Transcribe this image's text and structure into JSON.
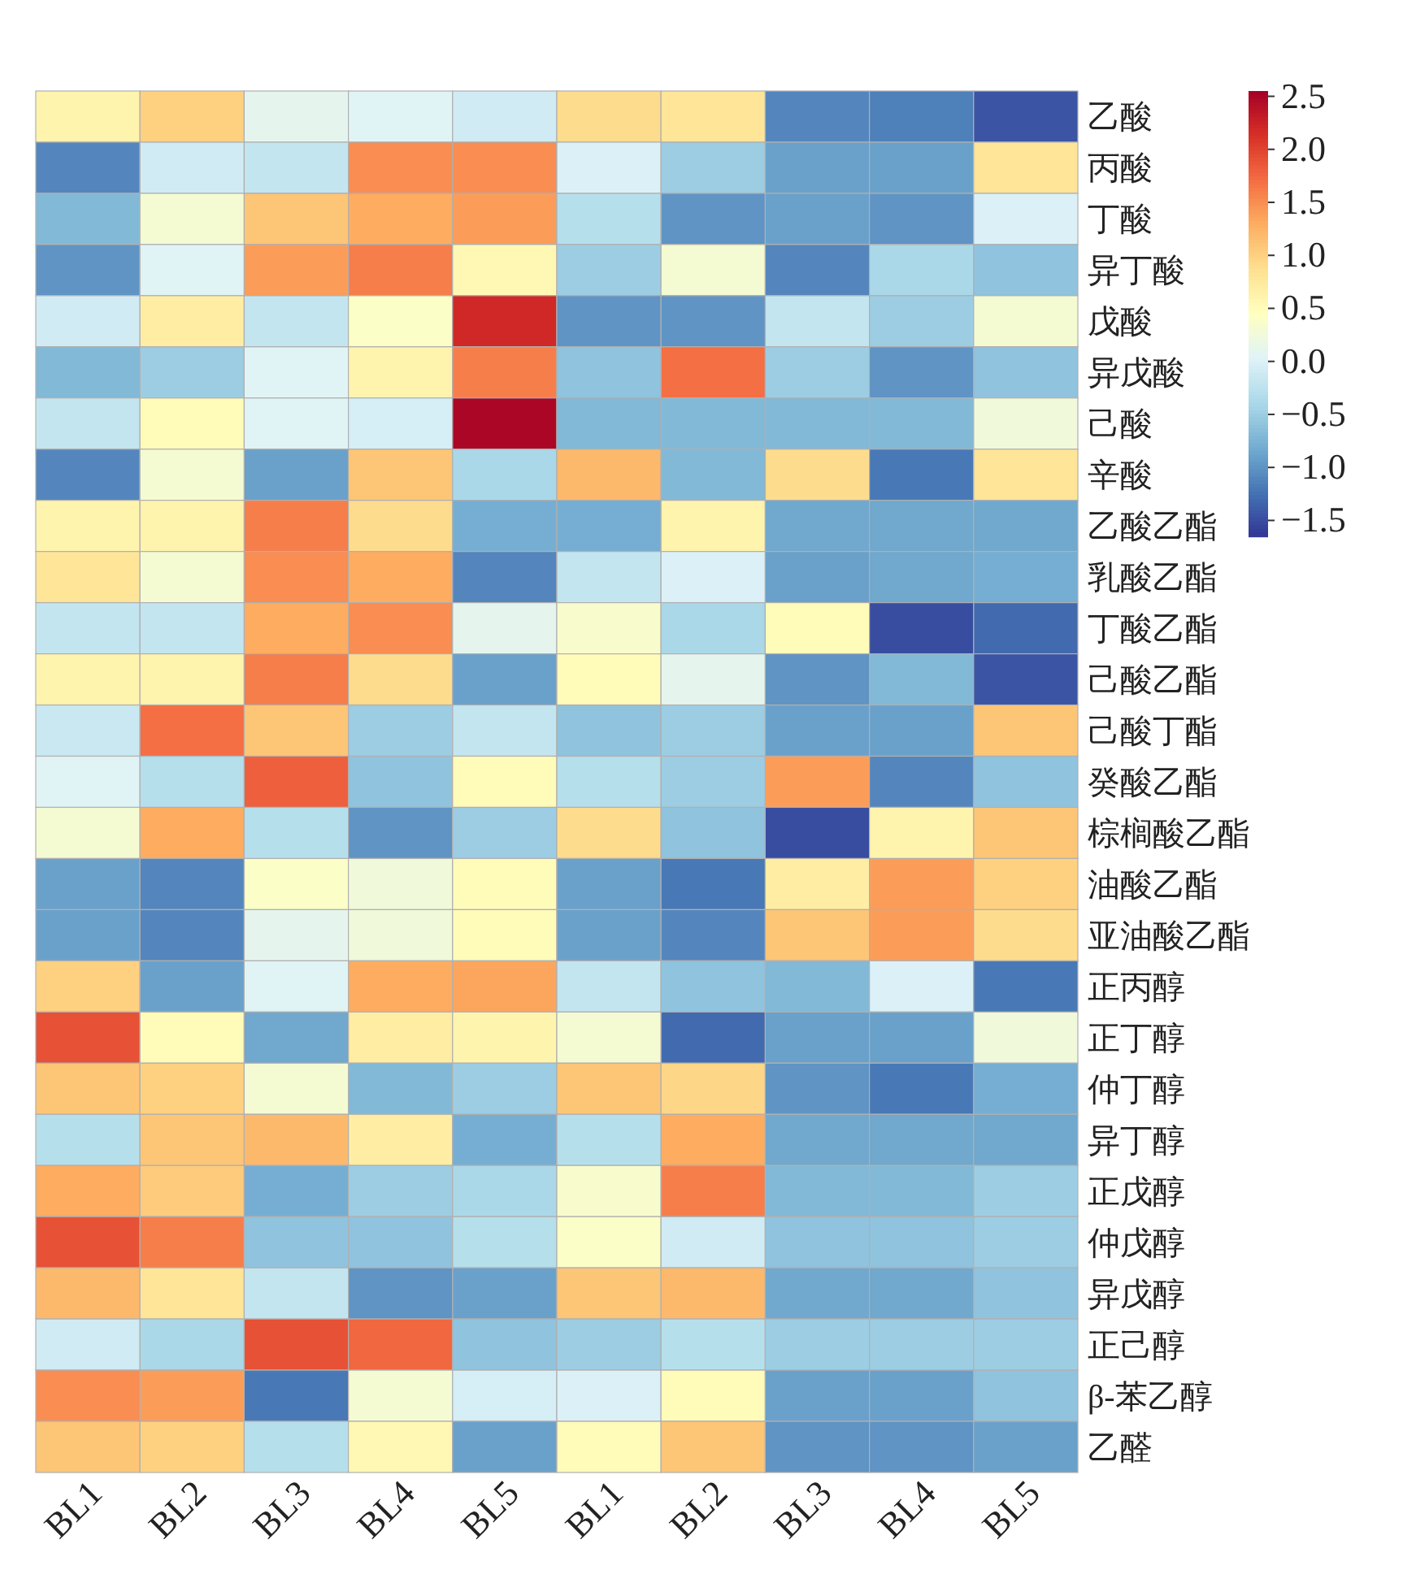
{
  "chart_data": {
    "type": "heatmap",
    "categories": [
      "BL1",
      "BL2",
      "BL3",
      "BL4",
      "BL5",
      "BL1",
      "BL2",
      "BL3",
      "BL4",
      "BL5"
    ],
    "y_categories": [
      "乙酸",
      "丙酸",
      "丁酸",
      "异丁酸",
      "戊酸",
      "异戊酸",
      "己酸",
      "辛酸",
      "乙酸乙酯",
      "乳酸乙酯",
      "丁酸乙酯",
      "己酸乙酯",
      "己酸丁酯",
      "癸酸乙酯",
      "棕榈酸乙酯",
      "油酸乙酯",
      "亚油酸乙酯",
      "正丙醇",
      "正丁醇",
      "仲丁醇",
      "异丁醇",
      "正戊醇",
      "仲戊醇",
      "异戊醇",
      "正己醇",
      "β-苯乙醇",
      "乙醛"
    ],
    "cells": [
      [
        0.6,
        1.0,
        0.1,
        0.05,
        -0.1,
        0.9,
        0.8,
        -1.1,
        -1.15,
        -1.45
      ],
      [
        -1.1,
        -0.1,
        -0.2,
        1.5,
        1.5,
        0.0,
        -0.5,
        -0.9,
        -0.9,
        0.8
      ],
      [
        -0.7,
        0.3,
        1.1,
        1.3,
        1.4,
        -0.3,
        -1.0,
        -0.9,
        -1.0,
        0.0
      ],
      [
        -1.0,
        0.05,
        1.4,
        1.6,
        0.55,
        -0.5,
        0.3,
        -1.1,
        -0.4,
        -0.6
      ],
      [
        -0.1,
        0.7,
        -0.2,
        0.4,
        2.2,
        -1.0,
        -1.0,
        -0.2,
        -0.5,
        0.3
      ],
      [
        -0.7,
        -0.5,
        0.05,
        0.6,
        1.6,
        -0.6,
        1.7,
        -0.5,
        -1.0,
        -0.6
      ],
      [
        -0.2,
        0.5,
        0.05,
        -0.05,
        2.5,
        -0.7,
        -0.7,
        -0.7,
        -0.7,
        0.25
      ],
      [
        -1.1,
        0.3,
        -0.9,
        1.1,
        -0.4,
        1.2,
        -0.7,
        0.9,
        -1.2,
        0.8
      ],
      [
        0.6,
        0.6,
        1.6,
        0.9,
        -0.8,
        -0.8,
        0.6,
        -0.85,
        -0.85,
        -0.85
      ],
      [
        0.8,
        0.3,
        1.5,
        1.3,
        -1.1,
        -0.2,
        0.0,
        -0.9,
        -0.85,
        -0.8
      ],
      [
        -0.2,
        -0.2,
        1.3,
        1.5,
        0.1,
        0.35,
        -0.4,
        0.5,
        -1.5,
        -1.3
      ],
      [
        0.6,
        0.6,
        1.6,
        0.9,
        -0.9,
        0.5,
        0.1,
        -1.0,
        -0.7,
        -1.45
      ],
      [
        -0.15,
        1.7,
        1.1,
        -0.5,
        -0.2,
        -0.6,
        -0.5,
        -0.9,
        -0.9,
        1.1
      ],
      [
        0.05,
        -0.3,
        1.8,
        -0.6,
        0.5,
        -0.3,
        -0.5,
        1.4,
        -1.1,
        -0.6
      ],
      [
        0.3,
        1.3,
        -0.3,
        -1.0,
        -0.5,
        0.9,
        -0.6,
        -1.5,
        0.6,
        1.1
      ],
      [
        -0.9,
        -1.1,
        0.4,
        0.25,
        0.5,
        -0.9,
        -1.2,
        0.7,
        1.4,
        1.0
      ],
      [
        -0.9,
        -1.1,
        0.1,
        0.25,
        0.5,
        -0.9,
        -1.1,
        1.1,
        1.4,
        0.9
      ],
      [
        1.0,
        -0.9,
        0.05,
        1.3,
        1.35,
        -0.2,
        -0.6,
        -0.7,
        0.0,
        -1.2
      ],
      [
        1.9,
        0.5,
        -0.85,
        0.7,
        0.6,
        0.3,
        -1.3,
        -0.9,
        -0.9,
        0.25
      ],
      [
        1.1,
        1.0,
        0.3,
        -0.7,
        -0.5,
        1.1,
        0.95,
        -1.0,
        -1.2,
        -0.8
      ],
      [
        -0.3,
        1.1,
        1.2,
        0.7,
        -0.8,
        -0.3,
        1.3,
        -0.85,
        -0.85,
        -0.85
      ],
      [
        1.3,
        1.05,
        -0.8,
        -0.5,
        -0.4,
        0.35,
        1.6,
        -0.7,
        -0.7,
        -0.5
      ],
      [
        1.9,
        1.6,
        -0.6,
        -0.6,
        -0.3,
        0.4,
        -0.1,
        -0.6,
        -0.6,
        -0.5
      ],
      [
        1.2,
        0.8,
        -0.2,
        -1.0,
        -0.9,
        1.1,
        1.2,
        -0.85,
        -0.85,
        -0.6
      ],
      [
        -0.1,
        -0.4,
        1.9,
        1.75,
        -0.6,
        -0.5,
        -0.3,
        -0.5,
        -0.5,
        -0.5
      ],
      [
        1.5,
        1.4,
        -1.2,
        0.3,
        -0.05,
        0.0,
        0.5,
        -0.9,
        -0.9,
        -0.6
      ],
      [
        1.1,
        1.0,
        -0.3,
        0.55,
        -0.9,
        0.5,
        1.1,
        -1.0,
        -1.0,
        -0.9
      ]
    ],
    "clim": [
      -1.65,
      2.55
    ],
    "cticks": [
      {
        "value": 2.5,
        "label": "2.5"
      },
      {
        "value": 2.0,
        "label": "2.0"
      },
      {
        "value": 1.5,
        "label": "1.5"
      },
      {
        "value": 1.0,
        "label": "1.0"
      },
      {
        "value": 0.5,
        "label": "0.5"
      },
      {
        "value": 0.0,
        "label": "0.0"
      },
      {
        "value": -0.5,
        "label": "−0.5"
      },
      {
        "value": -1.0,
        "label": "−1.0"
      },
      {
        "value": -1.5,
        "label": "−1.5"
      }
    ]
  }
}
